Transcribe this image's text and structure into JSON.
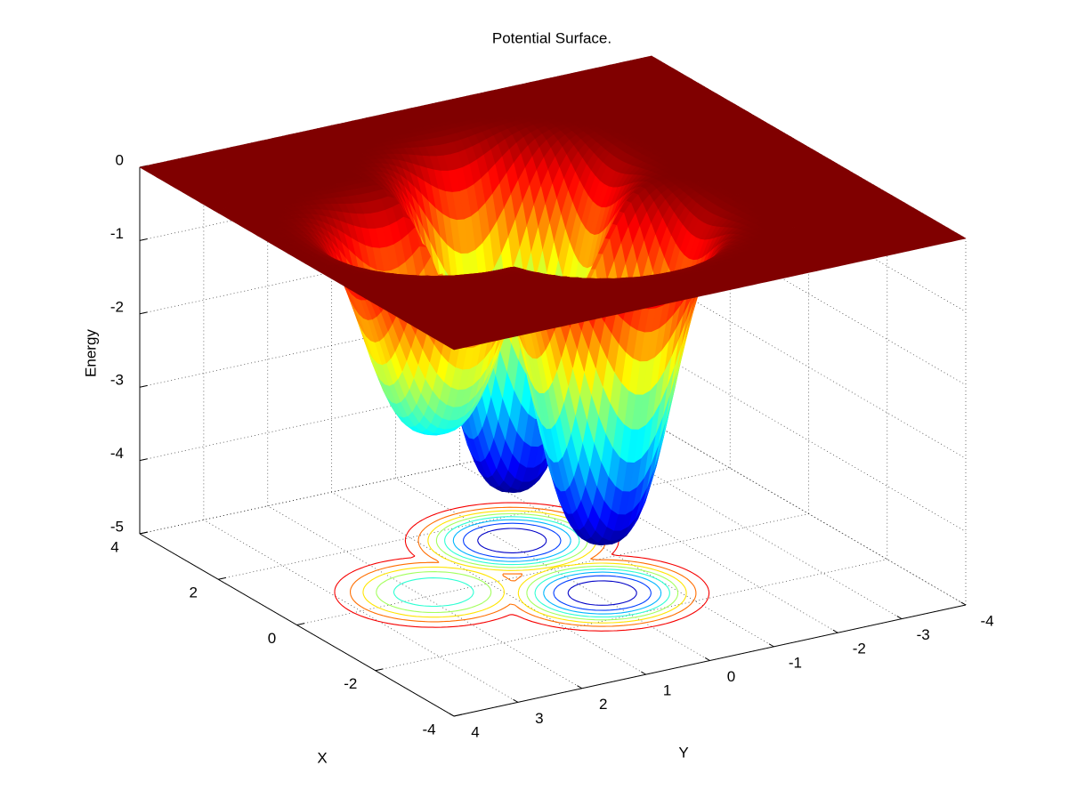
{
  "chart_data": {
    "type": "surface",
    "title": "Potential Surface.",
    "xlabel": "X",
    "ylabel": "Y",
    "zlabel": "Energy",
    "xlim": [
      -4,
      4
    ],
    "ylim": [
      -4,
      4
    ],
    "zlim": [
      -5,
      0
    ],
    "xticks": [
      -4,
      -2,
      0,
      2,
      4
    ],
    "yticks": [
      -4,
      -3,
      -2,
      -1,
      0,
      1,
      2,
      3,
      4
    ],
    "zticks": [
      -5,
      -4,
      -3,
      -2,
      -1,
      0
    ],
    "grid": true,
    "colormap": "jet",
    "contour": true,
    "contour_levels": [
      -4,
      -3.5,
      -3,
      -2.5,
      -2,
      -1.5,
      -1,
      -0.5
    ],
    "minima": [
      {
        "x": 1.2,
        "y": -0.1,
        "z": -4.3
      },
      {
        "x": -1.1,
        "y": -0.1,
        "z": -4.3
      },
      {
        "x": 0.1,
        "y": 1.8,
        "z": -2.8
      }
    ]
  }
}
